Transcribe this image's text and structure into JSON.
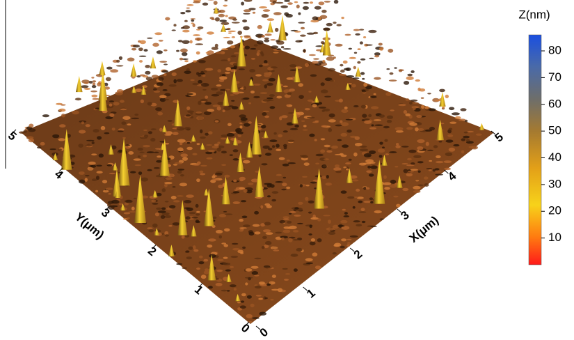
{
  "chart_data": {
    "type": "surface3d",
    "x_label": "X(μm)",
    "y_label": "Y(μm)",
    "xlim": [
      0,
      5
    ],
    "xticks": [
      0,
      1,
      2,
      3,
      4,
      5
    ],
    "ylim": [
      0,
      5
    ],
    "yticks": [
      0,
      1,
      2,
      3,
      4,
      5
    ],
    "colorbar": {
      "label": "Z(nm)",
      "lim": [
        0,
        86
      ],
      "ticks": [
        10,
        20,
        30,
        40,
        50,
        60,
        70,
        80
      ]
    }
  }
}
